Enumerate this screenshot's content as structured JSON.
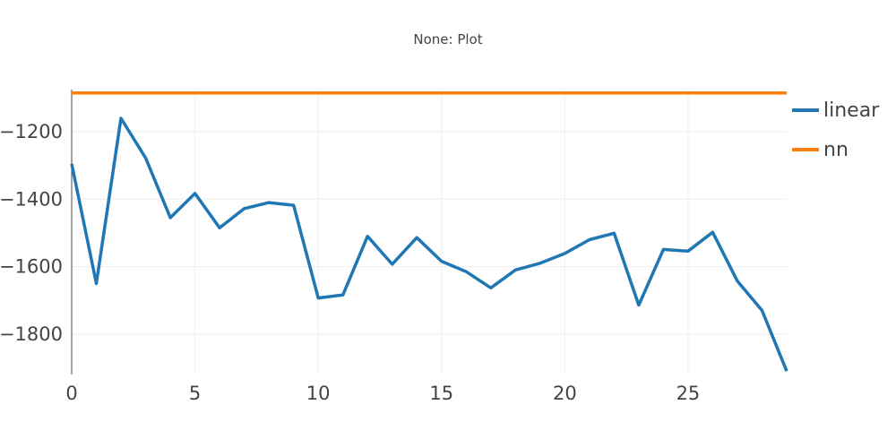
{
  "chart_data": {
    "type": "line",
    "title": "None: Plot",
    "xlabel": "",
    "ylabel": "",
    "xlim": [
      0,
      29
    ],
    "ylim": [
      -1920,
      -1075
    ],
    "grid": true,
    "legend_position": "top-right",
    "x_ticks": [
      0,
      5,
      10,
      15,
      20,
      25
    ],
    "y_ticks": [
      -1200,
      -1400,
      -1600,
      -1800
    ],
    "x_tick_labels": [
      "0",
      "5",
      "10",
      "15",
      "20",
      "25"
    ],
    "y_tick_labels": [
      "−1200",
      "−1400",
      "−1600",
      "−1800"
    ],
    "x": [
      0,
      1,
      2,
      3,
      4,
      5,
      6,
      7,
      8,
      9,
      10,
      11,
      12,
      13,
      14,
      15,
      16,
      17,
      18,
      19,
      20,
      21,
      22,
      23,
      24,
      25,
      26,
      27,
      28,
      29
    ],
    "series": [
      {
        "name": "linear",
        "color": "#1f77b4",
        "values": [
          -1295,
          -1650,
          -1160,
          -1278,
          -1455,
          -1383,
          -1485,
          -1428,
          -1410,
          -1418,
          -1693,
          -1684,
          -1510,
          -1593,
          -1514,
          -1584,
          -1615,
          -1663,
          -1610,
          -1590,
          -1561,
          -1520,
          -1501,
          -1714,
          -1549,
          -1554,
          -1498,
          -1643,
          -1730,
          -1910
        ]
      },
      {
        "name": "nn",
        "color": "#ff7f0e",
        "values": [
          -1085,
          -1085,
          -1085,
          -1085,
          -1085,
          -1085,
          -1085,
          -1085,
          -1085,
          -1085,
          -1085,
          -1085,
          -1085,
          -1085,
          -1085,
          -1085,
          -1085,
          -1085,
          -1085,
          -1085,
          -1085,
          -1085,
          -1085,
          -1085,
          -1085,
          -1085,
          -1085,
          -1085,
          -1085,
          -1085
        ]
      }
    ]
  }
}
